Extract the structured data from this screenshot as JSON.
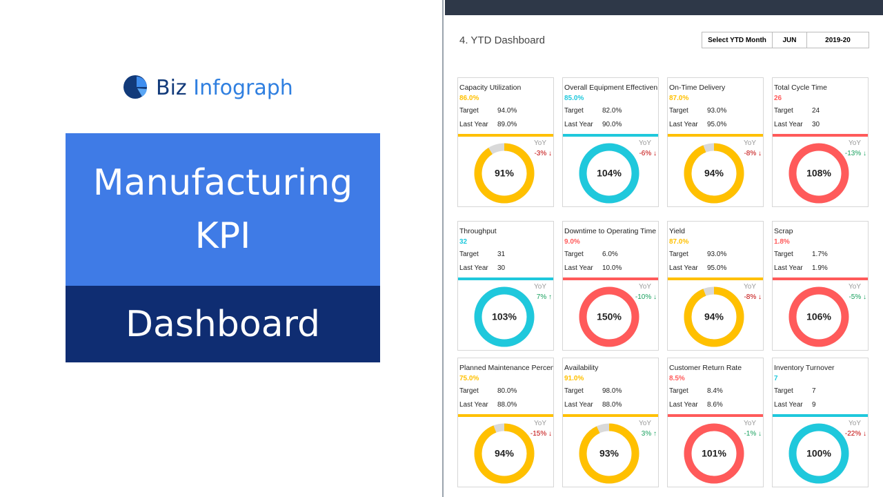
{
  "logo": {
    "word1": "Biz",
    "word2": "Infograph"
  },
  "hero": {
    "line1": "Manufacturing",
    "line2": "KPI",
    "line3": "Dashboard"
  },
  "dashboard": {
    "title": "4. YTD Dashboard",
    "selector": {
      "label": "Select YTD Month",
      "month": "JUN",
      "year": "2019-20"
    },
    "labels": {
      "target": "Target",
      "last_year": "Last Year",
      "yoy": "YoY"
    },
    "cards": [
      {
        "name": "Capacity Utilization",
        "actual": "86.0%",
        "target": "94.0%",
        "last_year": "89.0%",
        "color": "#ffc000",
        "yoy": "-3% ↓",
        "yoy_color": "#c00000",
        "pct": {
          "value": 91,
          "label": "91%"
        }
      },
      {
        "name": "Overall Equipment Effectiven",
        "actual": "85.0%",
        "target": "82.0%",
        "last_year": "90.0%",
        "color": "#1fc8dc",
        "yoy": "-6% ↓",
        "yoy_color": "#c00000",
        "pct": {
          "value": 104,
          "label": "104%"
        }
      },
      {
        "name": "On-Time Delivery",
        "actual": "87.0%",
        "target": "93.0%",
        "last_year": "95.0%",
        "color": "#ffc000",
        "yoy": "-8% ↓",
        "yoy_color": "#c00000",
        "pct": {
          "value": 94,
          "label": "94%"
        }
      },
      {
        "name": "Total Cycle Time",
        "actual": "26",
        "target": "24",
        "last_year": "30",
        "color": "#ff5a5a",
        "yoy": "-13% ↓",
        "yoy_color": "#17a05d",
        "pct": {
          "value": 108,
          "label": "108%"
        }
      },
      {
        "name": "Throughput",
        "actual": "32",
        "target": "31",
        "last_year": "30",
        "color": "#1fc8dc",
        "yoy": "7% ↑",
        "yoy_color": "#17a05d",
        "pct": {
          "value": 103,
          "label": "103%"
        }
      },
      {
        "name": "Downtime to Operating Time",
        "actual": "9.0%",
        "target": "6.0%",
        "last_year": "10.0%",
        "color": "#ff5a5a",
        "yoy": "-10% ↓",
        "yoy_color": "#17a05d",
        "pct": {
          "value": 150,
          "label": "150%"
        }
      },
      {
        "name": "Yield",
        "actual": "87.0%",
        "target": "93.0%",
        "last_year": "95.0%",
        "color": "#ffc000",
        "yoy": "-8% ↓",
        "yoy_color": "#c00000",
        "pct": {
          "value": 94,
          "label": "94%"
        }
      },
      {
        "name": "Scrap",
        "actual": "1.8%",
        "target": "1.7%",
        "last_year": "1.9%",
        "color": "#ff5a5a",
        "yoy": "-5% ↓",
        "yoy_color": "#17a05d",
        "pct": {
          "value": 106,
          "label": "106%"
        }
      },
      {
        "name": "Planned Maintenance Percen",
        "actual": "75.0%",
        "target": "80.0%",
        "last_year": "88.0%",
        "color": "#ffc000",
        "yoy": "-15% ↓",
        "yoy_color": "#c00000",
        "pct": {
          "value": 94,
          "label": "94%"
        }
      },
      {
        "name": "Availability",
        "actual": "91.0%",
        "target": "98.0%",
        "last_year": "88.0%",
        "color": "#ffc000",
        "yoy": "3% ↑",
        "yoy_color": "#17a05d",
        "pct": {
          "value": 93,
          "label": "93%"
        }
      },
      {
        "name": "Customer Return Rate",
        "actual": "8.5%",
        "target": "8.4%",
        "last_year": "8.6%",
        "color": "#ff5a5a",
        "yoy": "-1% ↓",
        "yoy_color": "#17a05d",
        "pct": {
          "value": 101,
          "label": "101%"
        }
      },
      {
        "name": "Inventory Turnover",
        "actual": "7",
        "target": "7",
        "last_year": "9",
        "color": "#1fc8dc",
        "yoy": "-22% ↓",
        "yoy_color": "#c00000",
        "pct": {
          "value": 100,
          "label": "100%"
        }
      }
    ]
  }
}
